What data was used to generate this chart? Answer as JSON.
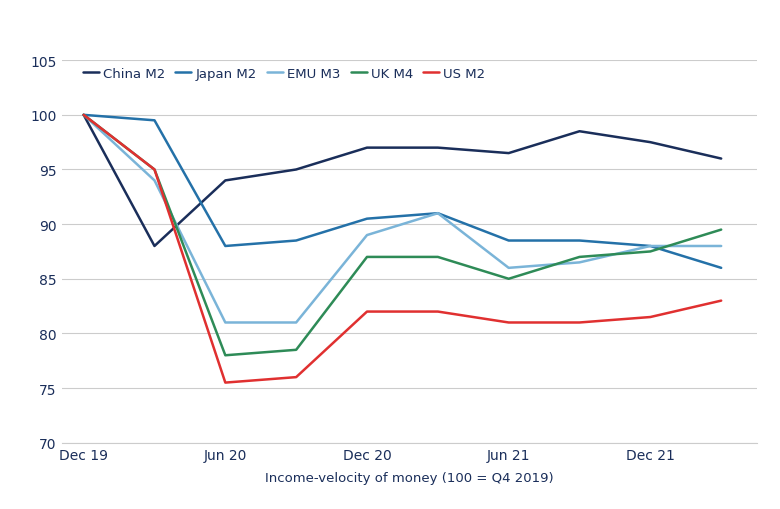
{
  "xlabel": "Income-velocity of money (100 = Q4 2019)",
  "ylim": [
    70,
    105
  ],
  "yticks": [
    70,
    75,
    80,
    85,
    90,
    95,
    100,
    105
  ],
  "major_xticks": [
    0,
    2,
    4,
    6,
    8
  ],
  "major_xlabels": [
    "Dec 19",
    "Jun 20",
    "Dec 20",
    "Jun 21",
    "Dec 21"
  ],
  "series": {
    "China M2": {
      "color": "#1a2e5a",
      "linewidth": 1.8,
      "x": [
        0,
        1,
        2,
        3,
        4,
        5,
        6,
        7,
        8,
        9
      ],
      "y": [
        100,
        88,
        94,
        95,
        97,
        97,
        96.5,
        98.5,
        97.5,
        96
      ]
    },
    "Japan M2": {
      "color": "#2471a8",
      "linewidth": 1.8,
      "x": [
        0,
        1,
        2,
        3,
        4,
        5,
        6,
        7,
        8,
        9
      ],
      "y": [
        100,
        99.5,
        88,
        88.5,
        90.5,
        91,
        88.5,
        88.5,
        88,
        86
      ]
    },
    "EMU M3": {
      "color": "#7ab4d8",
      "linewidth": 1.8,
      "x": [
        0,
        1,
        2,
        3,
        4,
        5,
        6,
        7,
        8,
        9
      ],
      "y": [
        100,
        94,
        81,
        81,
        89,
        91,
        86,
        86.5,
        88,
        88
      ]
    },
    "UK M4": {
      "color": "#2e8b57",
      "linewidth": 1.8,
      "x": [
        0,
        1,
        2,
        3,
        4,
        5,
        6,
        7,
        8,
        9
      ],
      "y": [
        100,
        95,
        78,
        78.5,
        87,
        87,
        85,
        87,
        87.5,
        89.5
      ]
    },
    "US M2": {
      "color": "#e03030",
      "linewidth": 1.8,
      "x": [
        0,
        1,
        2,
        3,
        4,
        5,
        6,
        7,
        8,
        9
      ],
      "y": [
        100,
        95,
        75.5,
        76,
        82,
        82,
        81,
        81,
        81.5,
        83
      ]
    }
  },
  "legend_order": [
    "China M2",
    "Japan M2",
    "EMU M3",
    "UK M4",
    "US M2"
  ],
  "background_color": "#ffffff",
  "grid_color": "#cccccc",
  "label_color": "#1a2e5a",
  "legend_fontsize": 9.5,
  "axis_fontsize": 9.5,
  "tick_fontsize": 10
}
